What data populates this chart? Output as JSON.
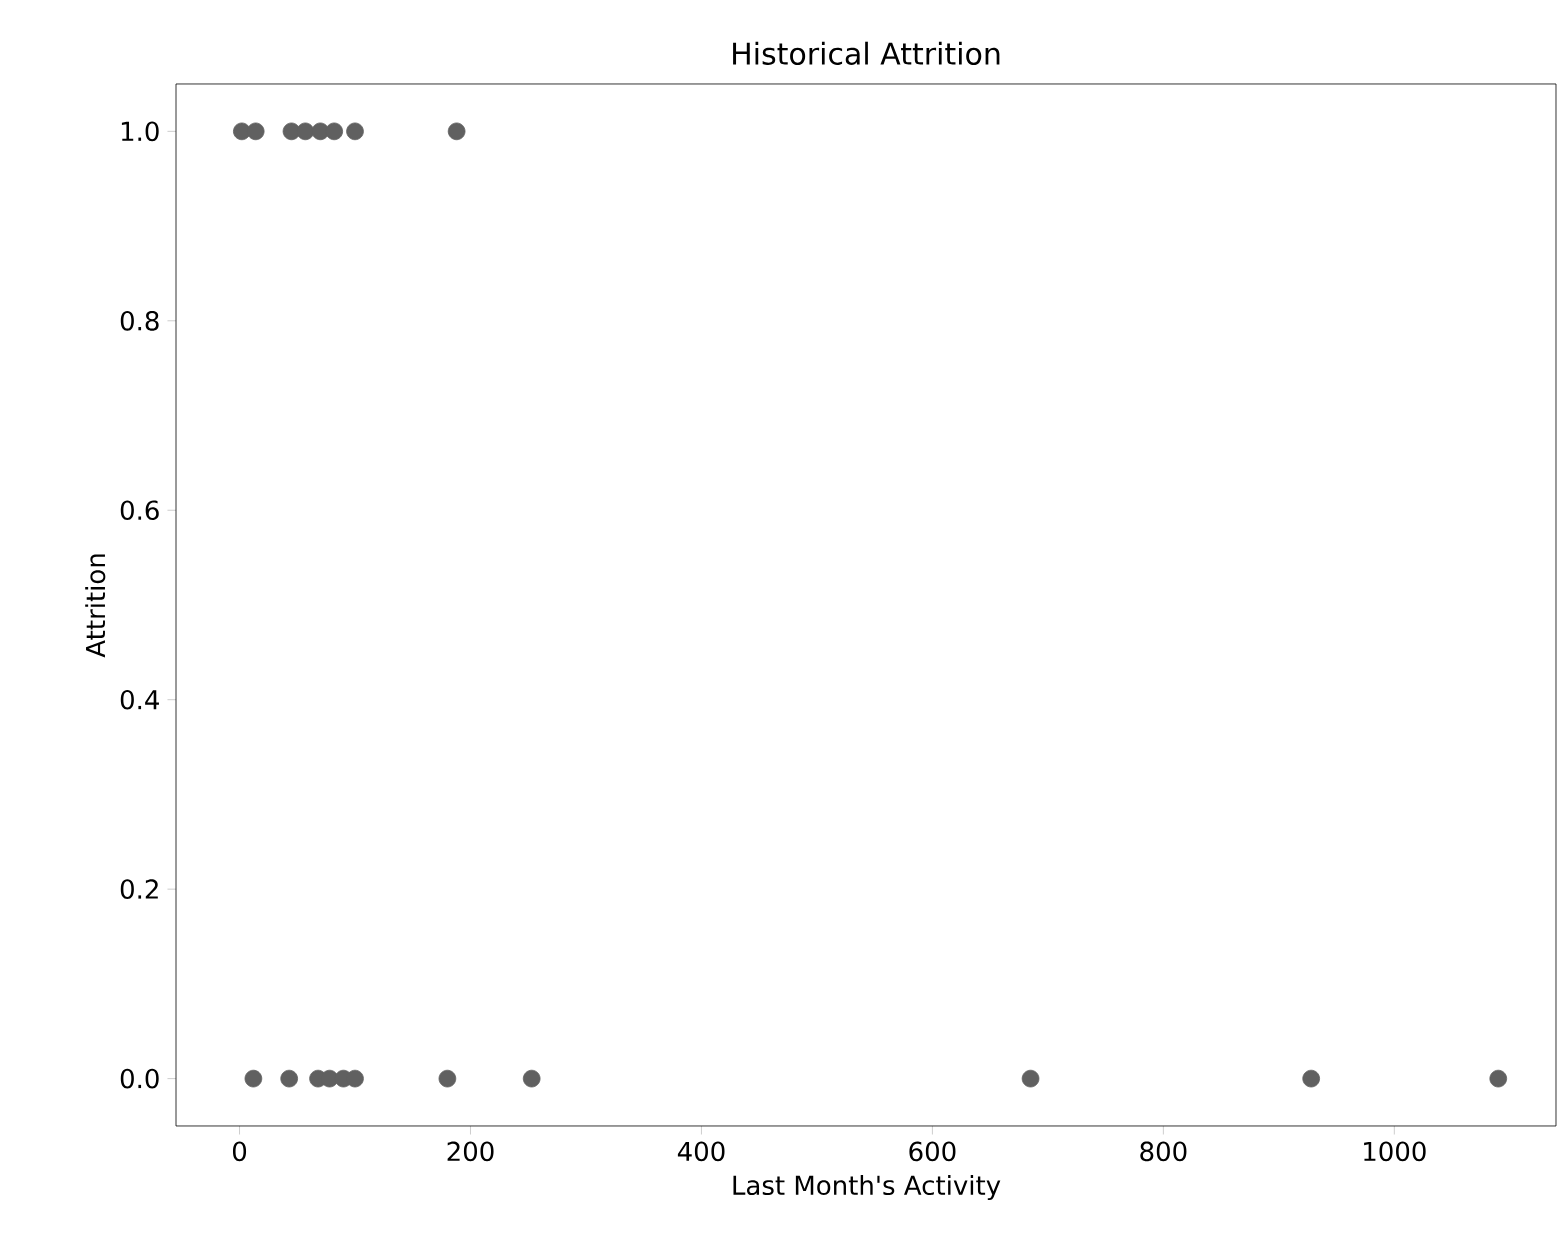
{
  "chart_data": {
    "type": "scatter",
    "title": "Historical Attrition",
    "xlabel": "Last Month's Activity",
    "ylabel": "Attrition",
    "series": [
      {
        "color": "#606060",
        "x": [
          2,
          14,
          45,
          57,
          70,
          82,
          100,
          188,
          12,
          43,
          68,
          78,
          90,
          100,
          180,
          253,
          685,
          928,
          1090
        ],
        "values": [
          1,
          1,
          1,
          1,
          1,
          1,
          1,
          1,
          0,
          0,
          0,
          0,
          0,
          0,
          0,
          0,
          0,
          0,
          0
        ]
      }
    ],
    "marker": "circle",
    "xlim": [
      -55,
      1140
    ],
    "ylim": [
      -0.05,
      1.05
    ],
    "xticks": [
      0,
      200,
      400,
      600,
      800,
      1000
    ],
    "yticks": [
      {
        "value": 0,
        "label": "0.0"
      },
      {
        "value": 0.2,
        "label": "0.2"
      },
      {
        "value": 0.4,
        "label": "0.4"
      },
      {
        "value": 0.6,
        "label": "0.6"
      },
      {
        "value": 0.8,
        "label": "0.8"
      },
      {
        "value": 1,
        "label": "1.0"
      }
    ]
  }
}
